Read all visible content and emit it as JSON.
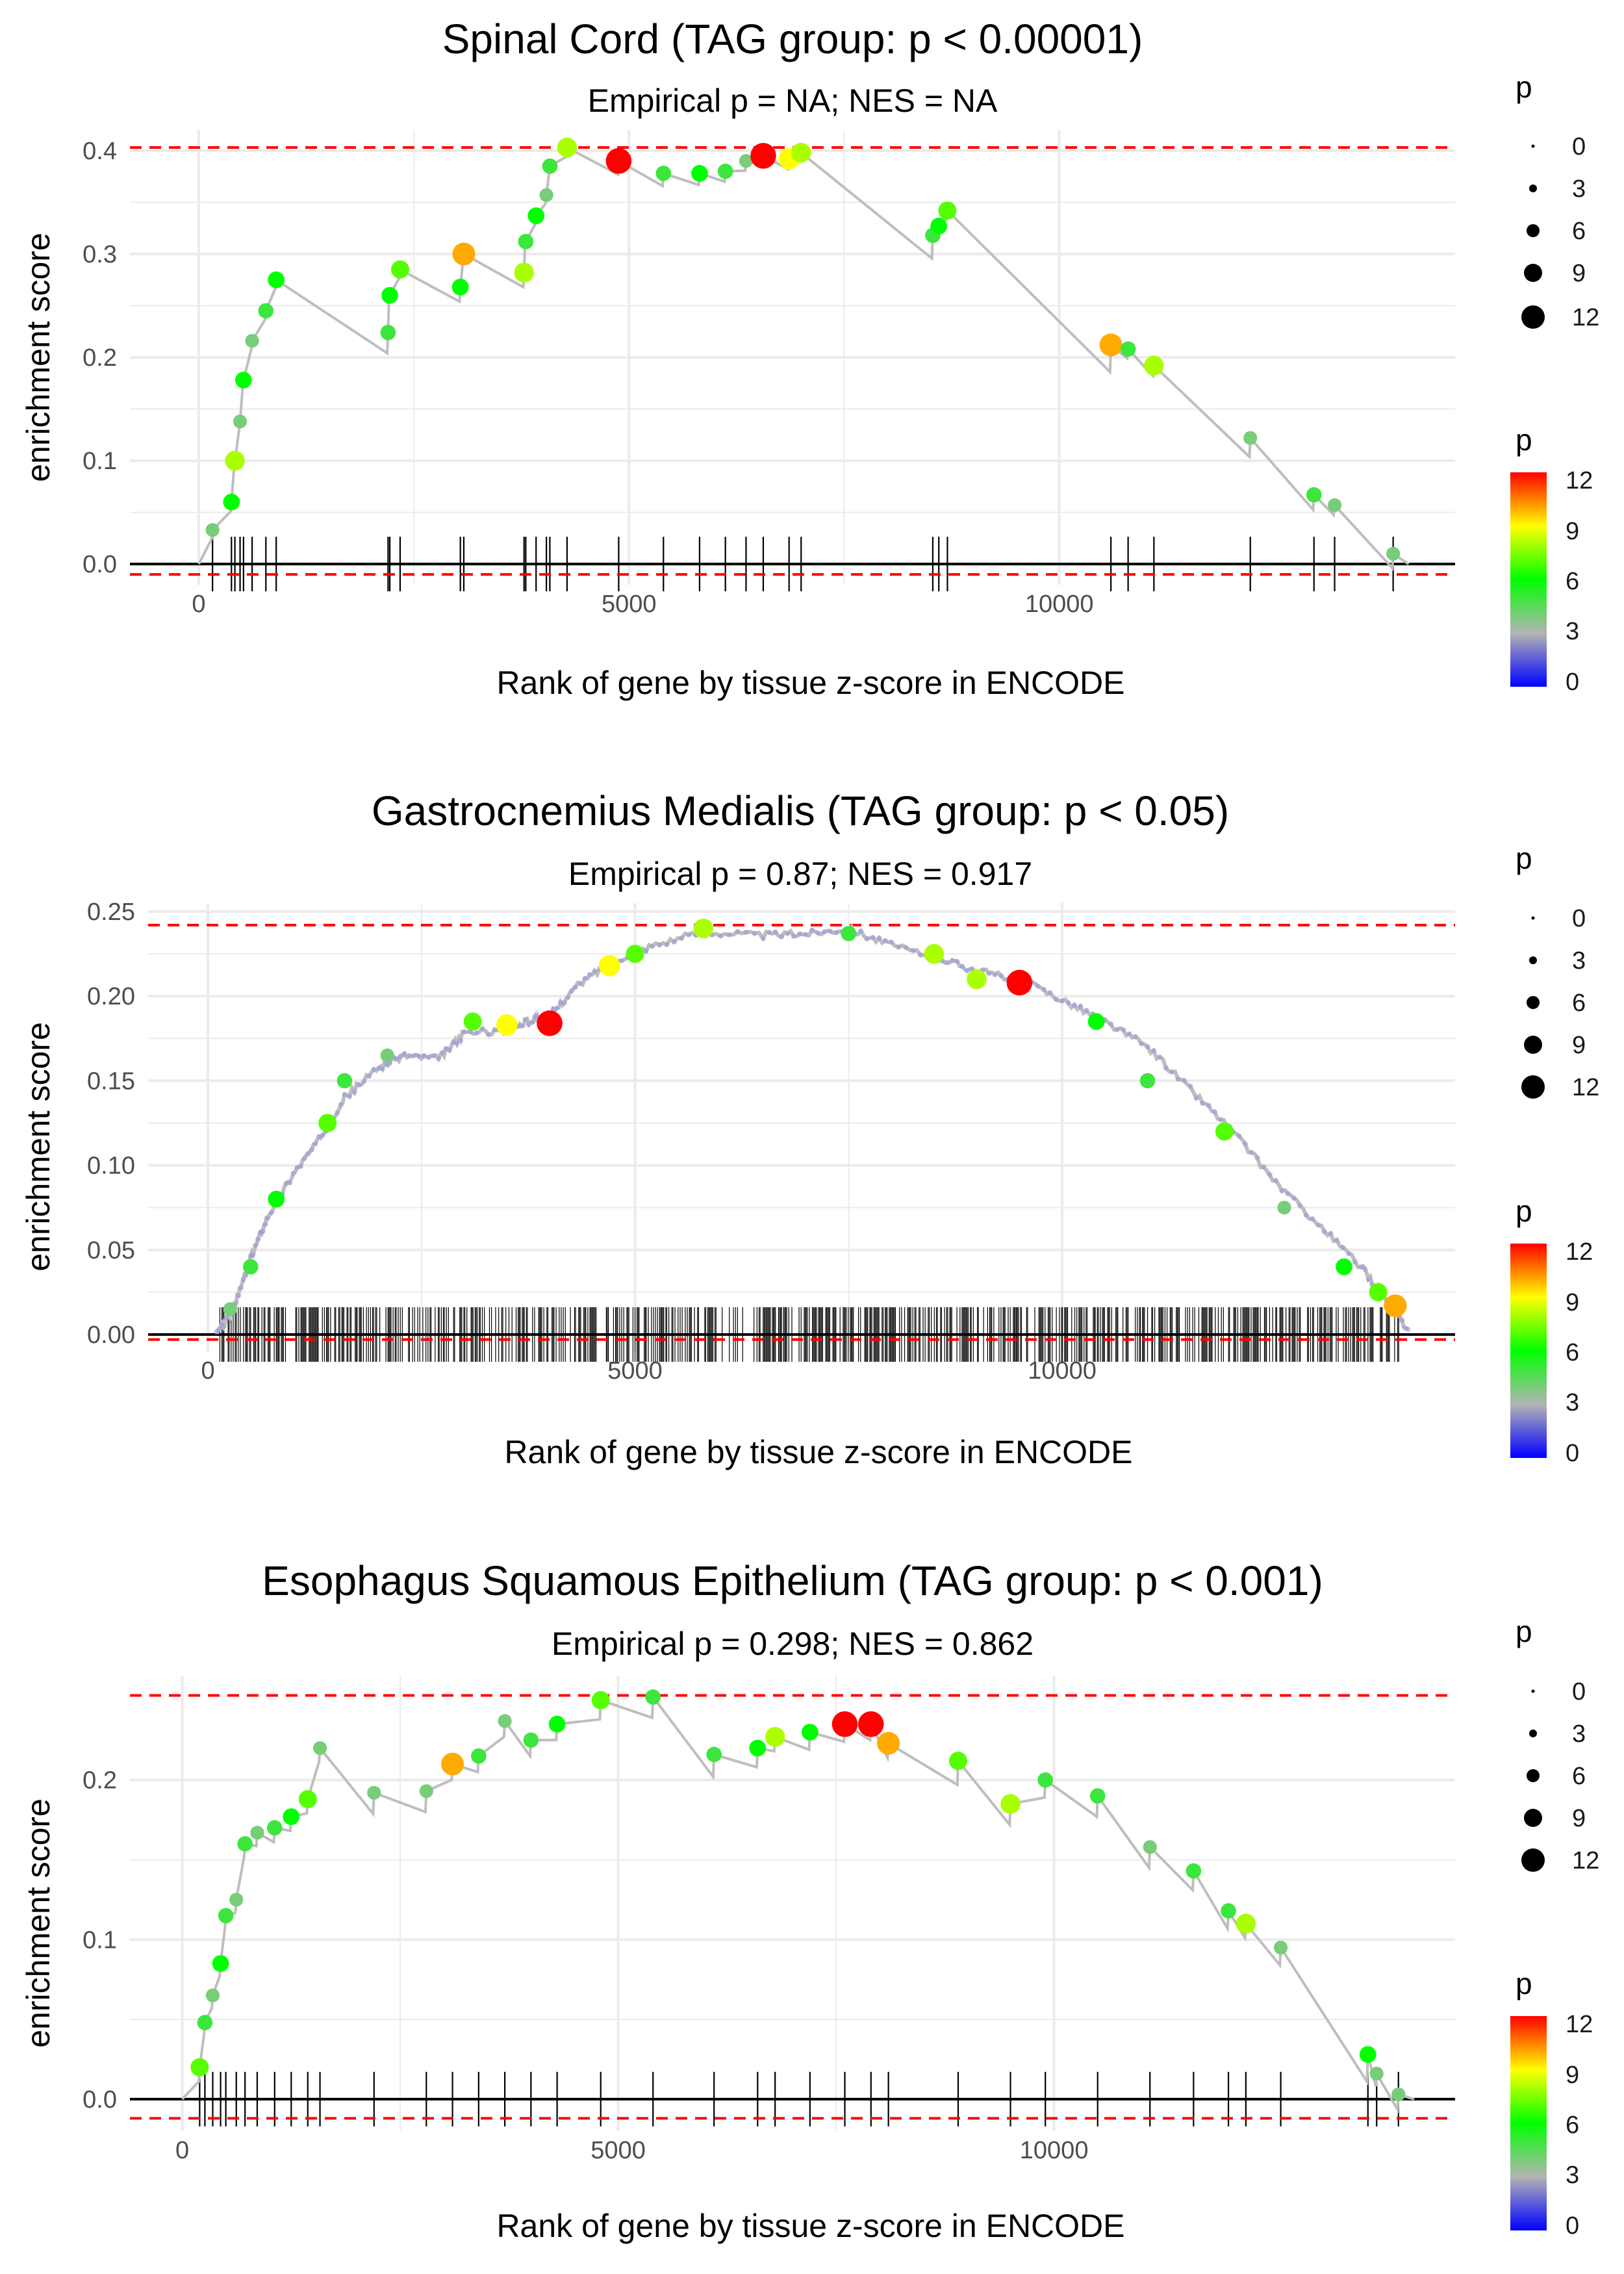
{
  "figure": {
    "xlabel": "Rank of gene by tissue z-score in ENCODE",
    "ylabel": "enrichment score"
  },
  "legend": {
    "size_title": "p",
    "size_values": [
      "0",
      "3",
      "6",
      "9",
      "12"
    ],
    "color_title": "p",
    "color_ticks": [
      "12",
      "9",
      "6",
      "3",
      "0"
    ]
  },
  "colors": {
    "line": "#bebebe",
    "ref": "#ff0000",
    "zero": "#000000",
    "grid": "#ebebeb"
  },
  "chart_data": [
    {
      "type": "line",
      "title": "Spinal Cord (TAG group: p < 0.00001)",
      "subtitle": "Empirical p = NA; NES = NA",
      "xlabel": "Rank of gene by tissue z-score in ENCODE",
      "ylabel": "enrichment score",
      "xlim": [
        -800,
        14600
      ],
      "ylim": [
        -0.02,
        0.42
      ],
      "x_ticks": [
        0,
        5000,
        10000
      ],
      "x_tick_labels": [
        "0",
        "5000",
        "10000"
      ],
      "y_ticks": [
        0,
        0.1,
        0.2,
        0.3,
        0.4
      ],
      "y_tick_labels": [
        "0.0",
        "0.1",
        "0.2",
        "0.3",
        "0.4"
      ],
      "ref_lines": [
        0.403,
        -0.01
      ],
      "hits": [
        [
          160,
          0.033,
          4
        ],
        [
          380,
          0.06,
          6
        ],
        [
          420,
          0.1,
          8
        ],
        [
          480,
          0.138,
          4
        ],
        [
          520,
          0.178,
          6
        ],
        [
          620,
          0.216,
          4
        ],
        [
          780,
          0.245,
          5
        ],
        [
          900,
          0.275,
          6
        ],
        [
          2200,
          0.224,
          5
        ],
        [
          2220,
          0.26,
          6
        ],
        [
          2340,
          0.285,
          7
        ],
        [
          3040,
          0.268,
          6
        ],
        [
          3080,
          0.3,
          10
        ],
        [
          3780,
          0.282,
          8
        ],
        [
          3800,
          0.312,
          5
        ],
        [
          3920,
          0.337,
          6
        ],
        [
          4040,
          0.357,
          4
        ],
        [
          4080,
          0.385,
          5
        ],
        [
          4280,
          0.403,
          8
        ],
        [
          4880,
          0.39,
          12
        ],
        [
          5400,
          0.378,
          5
        ],
        [
          5820,
          0.378,
          6
        ],
        [
          6120,
          0.38,
          5
        ],
        [
          6360,
          0.39,
          4
        ],
        [
          6560,
          0.395,
          12
        ],
        [
          6860,
          0.392,
          9
        ],
        [
          7000,
          0.398,
          8
        ],
        [
          8530,
          0.318,
          5
        ],
        [
          8600,
          0.327,
          6
        ],
        [
          8700,
          0.342,
          7
        ],
        [
          10600,
          0.212,
          10
        ],
        [
          10800,
          0.208,
          5
        ],
        [
          11100,
          0.192,
          8
        ],
        [
          12220,
          0.122,
          4
        ],
        [
          12960,
          0.067,
          5
        ],
        [
          13200,
          0.057,
          4
        ],
        [
          13880,
          0.01,
          4
        ]
      ]
    },
    {
      "type": "line",
      "title": "Gastrocnemius Medialis (TAG group: p < 0.05)",
      "subtitle": "Empirical p = 0.87; NES = 0.917",
      "xlabel": "Rank of gene by tissue z-score in ENCODE",
      "ylabel": "enrichment score",
      "xlim": [
        -700,
        14600
      ],
      "ylim": [
        -0.01,
        0.255
      ],
      "x_ticks": [
        0,
        5000,
        10000
      ],
      "x_tick_labels": [
        "0",
        "5000",
        "10000"
      ],
      "y_ticks": [
        0,
        0.05,
        0.1,
        0.15,
        0.2,
        0.25
      ],
      "y_tick_labels": [
        "0.00",
        "0.05",
        "0.10",
        "0.15",
        "0.20",
        "0.25"
      ],
      "ref_lines": [
        0.242,
        -0.003
      ],
      "curve": [
        [
          100,
          0
        ],
        [
          300,
          0.015
        ],
        [
          500,
          0.045
        ],
        [
          700,
          0.07
        ],
        [
          1000,
          0.095
        ],
        [
          1300,
          0.115
        ],
        [
          1600,
          0.14
        ],
        [
          2000,
          0.158
        ],
        [
          2300,
          0.165
        ],
        [
          2700,
          0.163
        ],
        [
          3000,
          0.178
        ],
        [
          3500,
          0.18
        ],
        [
          3800,
          0.186
        ],
        [
          4000,
          0.188
        ],
        [
          4300,
          0.205
        ],
        [
          4700,
          0.22
        ],
        [
          5200,
          0.23
        ],
        [
          5800,
          0.238
        ],
        [
          6500,
          0.236
        ],
        [
          7000,
          0.237
        ],
        [
          7500,
          0.24
        ],
        [
          8000,
          0.23
        ],
        [
          8600,
          0.222
        ],
        [
          9000,
          0.215
        ],
        [
          9500,
          0.21
        ],
        [
          10000,
          0.198
        ],
        [
          10500,
          0.185
        ],
        [
          11000,
          0.17
        ],
        [
          11500,
          0.145
        ],
        [
          12000,
          0.12
        ],
        [
          12500,
          0.09
        ],
        [
          13000,
          0.065
        ],
        [
          13500,
          0.04
        ],
        [
          13800,
          0.02
        ],
        [
          14050,
          0.003
        ]
      ],
      "hits": [
        [
          260,
          0.015,
          4
        ],
        [
          500,
          0.04,
          5
        ],
        [
          800,
          0.08,
          6
        ],
        [
          1400,
          0.125,
          7
        ],
        [
          1600,
          0.15,
          5
        ],
        [
          2100,
          0.165,
          4
        ],
        [
          3100,
          0.185,
          7
        ],
        [
          3500,
          0.183,
          9
        ],
        [
          4000,
          0.184,
          12
        ],
        [
          4700,
          0.218,
          9
        ],
        [
          5000,
          0.225,
          7
        ],
        [
          5800,
          0.24,
          8
        ],
        [
          7500,
          0.237,
          5
        ],
        [
          8500,
          0.225,
          8
        ],
        [
          9000,
          0.21,
          8
        ],
        [
          9500,
          0.208,
          12
        ],
        [
          10400,
          0.185,
          6
        ],
        [
          11000,
          0.15,
          5
        ],
        [
          11900,
          0.12,
          7
        ],
        [
          12600,
          0.075,
          4
        ],
        [
          13300,
          0.04,
          6
        ],
        [
          13700,
          0.025,
          7
        ],
        [
          13900,
          0.017,
          10
        ]
      ]
    },
    {
      "type": "line",
      "title": "Esophagus Squamous Epithelium (TAG group: p < 0.001)",
      "subtitle": "Empirical p = 0.298; NES = 0.862",
      "xlabel": "Rank of gene by tissue z-score in ENCODE",
      "ylabel": "enrichment score",
      "xlim": [
        -600,
        14600
      ],
      "ylim": [
        -0.02,
        0.265
      ],
      "x_ticks": [
        0,
        5000,
        10000
      ],
      "x_tick_labels": [
        "0",
        "5000",
        "10000"
      ],
      "y_ticks": [
        0,
        0.1,
        0.2
      ],
      "y_tick_labels": [
        "0.0",
        "0.1",
        "0.2"
      ],
      "ref_lines": [
        0.253,
        -0.012
      ],
      "hits": [
        [
          200,
          0.02,
          7
        ],
        [
          260,
          0.048,
          5
        ],
        [
          350,
          0.065,
          4
        ],
        [
          440,
          0.085,
          6
        ],
        [
          500,
          0.115,
          5
        ],
        [
          620,
          0.125,
          4
        ],
        [
          720,
          0.16,
          5
        ],
        [
          860,
          0.167,
          4
        ],
        [
          1060,
          0.17,
          5
        ],
        [
          1250,
          0.177,
          6
        ],
        [
          1440,
          0.188,
          7
        ],
        [
          1580,
          0.22,
          4
        ],
        [
          2200,
          0.192,
          4
        ],
        [
          2800,
          0.193,
          4
        ],
        [
          3100,
          0.21,
          10
        ],
        [
          3400,
          0.215,
          5
        ],
        [
          3700,
          0.237,
          4
        ],
        [
          4000,
          0.225,
          5
        ],
        [
          4300,
          0.235,
          6
        ],
        [
          4800,
          0.25,
          7
        ],
        [
          5400,
          0.252,
          5
        ],
        [
          6100,
          0.216,
          5
        ],
        [
          6600,
          0.22,
          6
        ],
        [
          6800,
          0.227,
          8
        ],
        [
          7200,
          0.23,
          6
        ],
        [
          7600,
          0.235,
          12
        ],
        [
          7900,
          0.235,
          12
        ],
        [
          8100,
          0.223,
          10
        ],
        [
          8900,
          0.212,
          7
        ],
        [
          9500,
          0.185,
          8
        ],
        [
          9900,
          0.2,
          5
        ],
        [
          10500,
          0.19,
          5
        ],
        [
          11100,
          0.158,
          4
        ],
        [
          11600,
          0.143,
          5
        ],
        [
          12000,
          0.118,
          5
        ],
        [
          12200,
          0.11,
          8
        ],
        [
          12600,
          0.095,
          4
        ],
        [
          13600,
          0.028,
          6
        ],
        [
          13700,
          0.016,
          4
        ],
        [
          13950,
          0.003,
          4
        ]
      ]
    }
  ]
}
